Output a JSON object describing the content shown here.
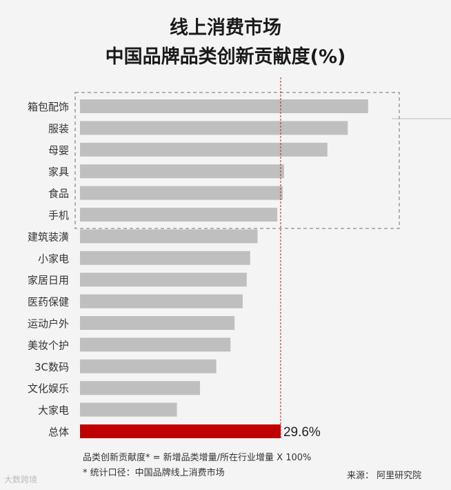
{
  "title_line1": "线上消费市场",
  "title_line2": "中国品牌品类创新贡献度(%)",
  "notes": {
    "formula": "品类创新贡献度* = 新增品类增量/所在行业增量 X 100%",
    "scope": "* 统计口径：中国品牌线上消费市场",
    "source": "来源：  阿里研究院"
  },
  "watermark": "大数跨境",
  "chart_data": {
    "type": "bar",
    "orientation": "horizontal",
    "categories": [
      "箱包配饰",
      "服装",
      "母婴",
      "家具",
      "食品",
      "手机",
      "建筑装潢",
      "小家电",
      "家居日用",
      "医药保健",
      "运动户外",
      "美妆个护",
      "3C数码",
      "文化娱乐",
      "大家电",
      "总体"
    ],
    "values": [
      42.5,
      39.5,
      36.5,
      30.1,
      29.9,
      29.1,
      26.2,
      25.1,
      24.6,
      24.0,
      22.8,
      22.2,
      20.1,
      17.7,
      14.3,
      29.6
    ],
    "data_labels": [
      "",
      "",
      "",
      "",
      "",
      "",
      "",
      "",
      "",
      "",
      "",
      "",
      "",
      "",
      "",
      "29.6%"
    ],
    "reference_line": 29.6,
    "highlight_group": [
      "箱包配饰",
      "服装",
      "母婴",
      "家具",
      "食品",
      "手机"
    ],
    "colors": {
      "bar": "#bfbfbf",
      "total_bar": "#c00000",
      "reference": "#b22222",
      "box": "#8c8c8c"
    }
  }
}
